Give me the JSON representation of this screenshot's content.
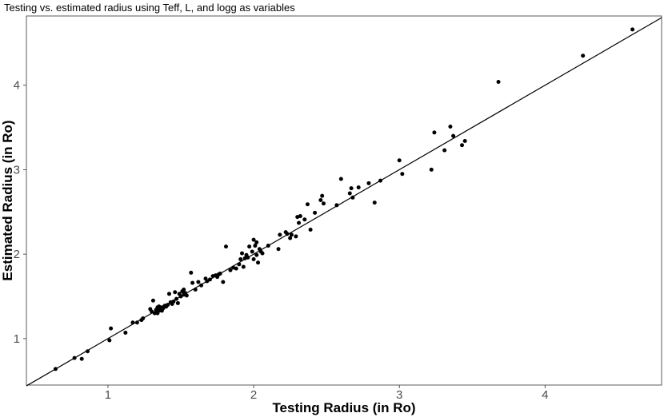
{
  "chart_data": {
    "type": "scatter",
    "title": "Testing vs. estimated radius using Teff, L, and logg as variables",
    "xlabel": "Testing Radius (in Ro)",
    "ylabel": "Estimated Radius (in Ro)",
    "xlim": [
      0.44,
      4.8
    ],
    "ylim": [
      0.45,
      4.82
    ],
    "xticks": [
      1,
      2,
      3,
      4
    ],
    "xtick_labels": [
      "1",
      "2",
      "3",
      "4"
    ],
    "yticks": [
      1,
      2,
      3,
      4
    ],
    "ytick_labels": [
      "1",
      "2",
      "3",
      "4"
    ],
    "grid": false,
    "point_color": "#000000",
    "reference_line": {
      "type": "identity",
      "from": [
        0.44,
        0.44
      ],
      "to": [
        4.8,
        4.8
      ],
      "color": "#000000"
    },
    "series": [
      {
        "x": [
          0.64,
          0.77,
          0.82,
          0.86,
          1.01,
          1.02,
          1.12,
          1.17,
          1.2,
          1.23,
          1.24,
          1.29,
          1.3,
          1.31,
          1.32,
          1.33,
          1.34,
          1.34,
          1.35,
          1.35,
          1.36,
          1.37,
          1.37,
          1.38,
          1.39,
          1.4,
          1.41,
          1.42,
          1.43,
          1.44,
          1.45,
          1.46,
          1.47,
          1.48,
          1.49,
          1.5,
          1.51,
          1.52,
          1.52,
          1.53,
          1.54,
          1.57,
          1.58,
          1.6,
          1.62,
          1.64,
          1.67,
          1.68,
          1.7,
          1.72,
          1.74,
          1.75,
          1.76,
          1.77,
          1.79,
          1.81,
          1.84,
          1.86,
          1.88,
          1.9,
          1.91,
          1.92,
          1.93,
          1.94,
          1.95,
          1.96,
          1.97,
          1.99,
          2.0,
          2.0,
          2.01,
          2.02,
          2.02,
          2.03,
          2.04,
          2.05,
          2.06,
          2.1,
          2.17,
          2.18,
          2.22,
          2.23,
          2.25,
          2.26,
          2.29,
          2.3,
          2.31,
          2.32,
          2.35,
          2.37,
          2.39,
          2.42,
          2.46,
          2.47,
          2.48,
          2.57,
          2.6,
          2.66,
          2.67,
          2.68,
          2.72,
          2.79,
          2.83,
          2.87,
          3.0,
          3.02,
          3.22,
          3.24,
          3.31,
          3.35,
          3.37,
          3.43,
          3.45,
          3.68,
          4.26,
          4.6
        ],
        "y": [
          0.64,
          0.77,
          0.76,
          0.85,
          0.98,
          1.12,
          1.07,
          1.19,
          1.19,
          1.22,
          1.24,
          1.35,
          1.32,
          1.45,
          1.3,
          1.34,
          1.3,
          1.37,
          1.33,
          1.38,
          1.35,
          1.37,
          1.33,
          1.36,
          1.39,
          1.38,
          1.4,
          1.53,
          1.43,
          1.41,
          1.44,
          1.55,
          1.47,
          1.42,
          1.53,
          1.5,
          1.56,
          1.52,
          1.58,
          1.54,
          1.51,
          1.78,
          1.66,
          1.58,
          1.67,
          1.63,
          1.71,
          1.68,
          1.7,
          1.74,
          1.75,
          1.73,
          1.76,
          1.77,
          1.67,
          2.09,
          1.81,
          1.84,
          1.83,
          1.88,
          1.94,
          2.01,
          1.85,
          1.95,
          1.99,
          1.96,
          2.09,
          2.03,
          1.94,
          2.17,
          2.1,
          2.14,
          1.99,
          1.9,
          2.06,
          2.03,
          2.01,
          2.1,
          2.06,
          2.23,
          2.26,
          2.24,
          2.19,
          2.23,
          2.21,
          2.44,
          2.37,
          2.45,
          2.41,
          2.59,
          2.29,
          2.49,
          2.64,
          2.69,
          2.6,
          2.58,
          2.89,
          2.72,
          2.78,
          2.67,
          2.79,
          2.84,
          2.61,
          2.87,
          3.11,
          2.95,
          3.0,
          3.44,
          3.23,
          3.51,
          3.4,
          3.29,
          3.34,
          4.04,
          4.35,
          4.66
        ]
      }
    ]
  }
}
